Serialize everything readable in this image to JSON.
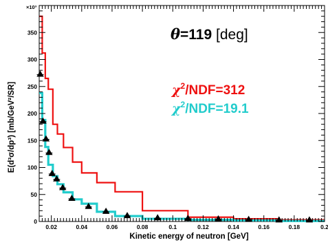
{
  "chart_data": {
    "type": "line",
    "title": "",
    "xlabel": "Kinetic energy of neutron [GeV]",
    "ylabel": "E(d³σ/dp³) [mb/GeV²/SR]",
    "y_multiplier": "×10³",
    "xlim": [
      0.012,
      0.2
    ],
    "ylim": [
      0,
      400
    ],
    "x_ticks": [
      0.02,
      0.04,
      0.06,
      0.08,
      0.1,
      0.12,
      0.14,
      0.16,
      0.18,
      0.2
    ],
    "y_ticks": [
      0,
      50,
      100,
      150,
      200,
      250,
      300,
      350
    ],
    "x_tick_labels": [
      "0.02",
      "0.04",
      "0.06",
      "0.08",
      "0.1",
      "0.12",
      "0.14",
      "0.16",
      "0.18",
      "0.2"
    ],
    "y_tick_labels": [
      "0",
      "50",
      "100",
      "150",
      "200",
      "250",
      "300",
      "350"
    ],
    "grid": false,
    "bin_edges": [
      0.012,
      0.014,
      0.016,
      0.018,
      0.021,
      0.024,
      0.028,
      0.034,
      0.04,
      0.05,
      0.062,
      0.08,
      0.11,
      0.14,
      0.17,
      0.2
    ],
    "series": [
      {
        "kind": "step",
        "color": "#ee1111",
        "values": [
          380,
          312,
          265,
          245,
          180,
          162,
          137,
          110,
          90,
          72,
          55,
          20,
          8,
          5,
          3
        ]
      },
      {
        "kind": "step",
        "color": "#22cccc",
        "values": [
          238,
          188,
          138,
          105,
          84,
          69,
          54,
          41,
          33,
          18,
          10,
          5,
          3,
          2,
          1
        ]
      },
      {
        "kind": "points",
        "color": "#000000",
        "x": [
          0.0127,
          0.0145,
          0.0165,
          0.0185,
          0.0205,
          0.0235,
          0.0275,
          0.0335,
          0.0445,
          0.056,
          0.07,
          0.09,
          0.11,
          0.13,
          0.15,
          0.17,
          0.19
        ],
        "y": [
          272,
          185,
          152,
          127,
          88,
          78,
          62,
          42,
          27,
          18,
          10,
          6,
          5,
          4,
          3,
          2,
          2
        ]
      }
    ],
    "annotations": {
      "angle": {
        "symbol": "θ",
        "value": "=119",
        "unit": " [deg]"
      },
      "chi_red": {
        "chi": "χ",
        "sup": "2",
        "rest": "/NDF=312",
        "color": "#ee1111"
      },
      "chi_cyan": {
        "chi": "χ",
        "sup": "2",
        "rest": "/NDF=19.1",
        "color": "#22cccc"
      }
    }
  }
}
